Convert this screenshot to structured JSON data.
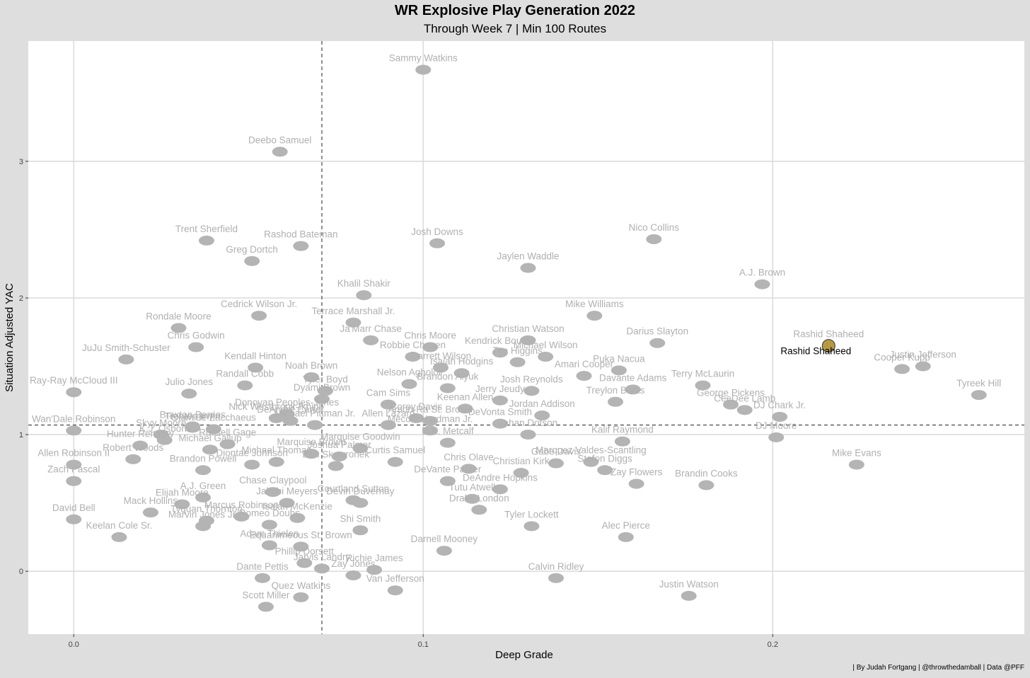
{
  "chart_data": {
    "type": "scatter",
    "title": "WR Explosive Play Generation 2022",
    "subtitle": "Through Week 7 | Min 100 Routes",
    "xlabel": "Deep Grade",
    "ylabel": "Situation Adjusted YAC",
    "caption": "| By Judah Fortgang | @throwthedamball | Data @PFF",
    "xlim": [
      -0.013,
      0.272
    ],
    "ylim": [
      -0.46,
      3.88
    ],
    "xticks": [
      0.0,
      0.1,
      0.2
    ],
    "xtick_labels": [
      "0.0",
      "0.1",
      "0.2"
    ],
    "yticks": [
      0,
      1,
      2,
      3
    ],
    "ytick_labels": [
      "0",
      "1",
      "2",
      "3"
    ],
    "grid": true,
    "vline_x": 0.071,
    "hline_y": 1.07,
    "highlight": "Rashid Shaheed",
    "colors": {
      "point": "#b4b4b4",
      "label": "#b0b0b0",
      "highlight_point": "#b59a45",
      "highlight_label": "#000000"
    },
    "points": [
      {
        "name": "Sammy Watkins",
        "x": 0.1,
        "y": 3.67
      },
      {
        "name": "Deebo Samuel",
        "x": 0.059,
        "y": 3.07
      },
      {
        "name": "Trent Sherfield",
        "x": 0.038,
        "y": 2.42
      },
      {
        "name": "Rashod Bateman",
        "x": 0.065,
        "y": 2.38
      },
      {
        "name": "Josh Downs",
        "x": 0.104,
        "y": 2.4
      },
      {
        "name": "Nico Collins",
        "x": 0.166,
        "y": 2.43
      },
      {
        "name": "Greg Dortch",
        "x": 0.051,
        "y": 2.27
      },
      {
        "name": "Jaylen Waddle",
        "x": 0.13,
        "y": 2.22
      },
      {
        "name": "A.J. Brown",
        "x": 0.197,
        "y": 2.1
      },
      {
        "name": "Khalil Shakir",
        "x": 0.083,
        "y": 2.02
      },
      {
        "name": "Cedrick Wilson Jr.",
        "x": 0.053,
        "y": 1.87
      },
      {
        "name": "Terrace Marshall Jr.",
        "x": 0.08,
        "y": 1.82
      },
      {
        "name": "Mike Williams",
        "x": 0.149,
        "y": 1.87
      },
      {
        "name": "Rondale Moore",
        "x": 0.03,
        "y": 1.78
      },
      {
        "name": "Ja'Marr Chase",
        "x": 0.085,
        "y": 1.69
      },
      {
        "name": "Chris Moore",
        "x": 0.102,
        "y": 1.64
      },
      {
        "name": "Christian Watson",
        "x": 0.13,
        "y": 1.69
      },
      {
        "name": "Darius Slayton",
        "x": 0.167,
        "y": 1.67
      },
      {
        "name": "Rashid Shaheed",
        "x": 0.216,
        "y": 1.65
      },
      {
        "name": "Chris Godwin",
        "x": 0.035,
        "y": 1.64
      },
      {
        "name": "Kendrick Bourne",
        "x": 0.122,
        "y": 1.6
      },
      {
        "name": "Michael Wilson",
        "x": 0.135,
        "y": 1.57
      },
      {
        "name": "Robbie Chosen",
        "x": 0.097,
        "y": 1.57
      },
      {
        "name": "JuJu Smith-Schuster",
        "x": 0.015,
        "y": 1.55
      },
      {
        "name": "Tee Higgins",
        "x": 0.127,
        "y": 1.53
      },
      {
        "name": "Justin Jefferson",
        "x": 0.243,
        "y": 1.5
      },
      {
        "name": "Kendall Hinton",
        "x": 0.052,
        "y": 1.49
      },
      {
        "name": "Garrett Wilson",
        "x": 0.105,
        "y": 1.49
      },
      {
        "name": "Noah Brown",
        "x": 0.068,
        "y": 1.42
      },
      {
        "name": "Amari Cooper",
        "x": 0.146,
        "y": 1.43
      },
      {
        "name": "Puka Nacua",
        "x": 0.156,
        "y": 1.47
      },
      {
        "name": "Isaiah Hodgins",
        "x": 0.111,
        "y": 1.45
      },
      {
        "name": "Cooper Kupp",
        "x": 0.237,
        "y": 1.48
      },
      {
        "name": "Randall Cobb",
        "x": 0.049,
        "y": 1.36
      },
      {
        "name": "Tyler Boyd",
        "x": 0.072,
        "y": 1.32
      },
      {
        "name": "Nelson Agholor",
        "x": 0.096,
        "y": 1.37
      },
      {
        "name": "Brandon Aiyuk",
        "x": 0.107,
        "y": 1.34
      },
      {
        "name": "Josh Reynolds",
        "x": 0.131,
        "y": 1.32
      },
      {
        "name": "Davante Adams",
        "x": 0.16,
        "y": 1.33
      },
      {
        "name": "Terry McLaurin",
        "x": 0.18,
        "y": 1.36
      },
      {
        "name": "Julio Jones",
        "x": 0.033,
        "y": 1.3
      },
      {
        "name": "Ray-Ray McCloud III",
        "x": 0.0,
        "y": 1.31
      },
      {
        "name": "Tyreek Hill",
        "x": 0.259,
        "y": 1.29
      },
      {
        "name": "Dyami Brown",
        "x": 0.071,
        "y": 1.26
      },
      {
        "name": "Jerry Jeudy",
        "x": 0.122,
        "y": 1.25
      },
      {
        "name": "Treylon Burks",
        "x": 0.155,
        "y": 1.24
      },
      {
        "name": "George Pickens",
        "x": 0.188,
        "y": 1.22
      },
      {
        "name": "Cam Sims",
        "x": 0.09,
        "y": 1.22
      },
      {
        "name": "Keenan Allen",
        "x": 0.112,
        "y": 1.19
      },
      {
        "name": "Donovan Peoples-Jones",
        "x": 0.061,
        "y": 1.15
      },
      {
        "name": "Braxton Berrios",
        "x": 0.034,
        "y": 1.06
      },
      {
        "name": "Corey Davis",
        "x": 0.098,
        "y": 1.12
      },
      {
        "name": "Amon-Ra St. Brown",
        "x": 0.102,
        "y": 1.1
      },
      {
        "name": "Jordan Addison",
        "x": 0.134,
        "y": 1.14
      },
      {
        "name": "CeeDee Lamb",
        "x": 0.192,
        "y": 1.18
      },
      {
        "name": "Olamide Zacchaeus",
        "x": 0.04,
        "y": 1.04
      },
      {
        "name": "Trenton Irwin",
        "x": 0.034,
        "y": 1.05
      },
      {
        "name": "DeAndre Carter",
        "x": 0.062,
        "y": 1.1
      },
      {
        "name": "Nick Westbrook-Ikhine",
        "x": 0.058,
        "y": 1.12
      },
      {
        "name": "DJ Chark Jr.",
        "x": 0.202,
        "y": 1.13
      },
      {
        "name": "Wan'Dale Robinson",
        "x": 0.0,
        "y": 1.03
      },
      {
        "name": "Allen Lazard",
        "x": 0.09,
        "y": 1.07
      },
      {
        "name": "Mecole Hardman Jr.",
        "x": 0.102,
        "y": 1.03
      },
      {
        "name": "DeVonta Smith",
        "x": 0.122,
        "y": 1.08
      },
      {
        "name": "Michael Pittman Jr.",
        "x": 0.069,
        "y": 1.07
      },
      {
        "name": "Skyy Moore",
        "x": 0.025,
        "y": 1.0
      },
      {
        "name": "Kalif Raymond",
        "x": 0.157,
        "y": 0.95
      },
      {
        "name": "Jahan Dotson",
        "x": 0.13,
        "y": 1.0
      },
      {
        "name": "DJ Moore",
        "x": 0.201,
        "y": 0.98
      },
      {
        "name": "K.J. Osborn",
        "x": 0.026,
        "y": 0.96
      },
      {
        "name": "D.K. Metcalf",
        "x": 0.107,
        "y": 0.94
      },
      {
        "name": "Hunter Renfrow",
        "x": 0.019,
        "y": 0.92
      },
      {
        "name": "Marquise Brown",
        "x": 0.068,
        "y": 0.86
      },
      {
        "name": "Marquise Goodwin",
        "x": 0.082,
        "y": 0.9
      },
      {
        "name": "Russell Gage",
        "x": 0.044,
        "y": 0.93
      },
      {
        "name": "Michael Gallup",
        "x": 0.039,
        "y": 0.89
      },
      {
        "name": "Joshua Palmer",
        "x": 0.076,
        "y": 0.84
      },
      {
        "name": "Gabe Davis",
        "x": 0.138,
        "y": 0.79
      },
      {
        "name": "Marquez Valdes-Scantling",
        "x": 0.148,
        "y": 0.8
      },
      {
        "name": "Chris Olave",
        "x": 0.113,
        "y": 0.75
      },
      {
        "name": "Curtis Samuel",
        "x": 0.092,
        "y": 0.8
      },
      {
        "name": "Diontae Johnson",
        "x": 0.051,
        "y": 0.78
      },
      {
        "name": "Michael Thomas",
        "x": 0.058,
        "y": 0.8
      },
      {
        "name": "Allen Robinson II",
        "x": 0.0,
        "y": 0.78
      },
      {
        "name": "Brandon Powell",
        "x": 0.037,
        "y": 0.74
      },
      {
        "name": "Ben Skowronek",
        "x": 0.075,
        "y": 0.77
      },
      {
        "name": "DeVante Parker",
        "x": 0.107,
        "y": 0.66
      },
      {
        "name": "Stefon Diggs",
        "x": 0.152,
        "y": 0.74
      },
      {
        "name": "Christian Kirk",
        "x": 0.128,
        "y": 0.72
      },
      {
        "name": "Brandin Cooks",
        "x": 0.181,
        "y": 0.63
      },
      {
        "name": "Mike Evans",
        "x": 0.224,
        "y": 0.78
      },
      {
        "name": "Zach Pascal",
        "x": 0.0,
        "y": 0.66
      },
      {
        "name": "Robert Woods",
        "x": 0.017,
        "y": 0.82
      },
      {
        "name": "Tutu Atwell",
        "x": 0.114,
        "y": 0.53
      },
      {
        "name": "Zay Flowers",
        "x": 0.161,
        "y": 0.64
      },
      {
        "name": "Chase Claypool",
        "x": 0.057,
        "y": 0.58
      },
      {
        "name": "Courtland Sutton",
        "x": 0.08,
        "y": 0.52
      },
      {
        "name": "A.J. Green",
        "x": 0.037,
        "y": 0.54
      },
      {
        "name": "DeAndre Hopkins",
        "x": 0.122,
        "y": 0.6
      },
      {
        "name": "Elijah Moore",
        "x": 0.031,
        "y": 0.49
      },
      {
        "name": "Jakobi Meyers",
        "x": 0.061,
        "y": 0.5
      },
      {
        "name": "Devin Duvernay",
        "x": 0.082,
        "y": 0.5
      },
      {
        "name": "Marcus Robinson",
        "x": 0.048,
        "y": 0.4
      },
      {
        "name": "Drake London",
        "x": 0.116,
        "y": 0.45
      },
      {
        "name": "Mack Hollins",
        "x": 0.022,
        "y": 0.43
      },
      {
        "name": "Tyquan Thornton",
        "x": 0.038,
        "y": 0.37
      },
      {
        "name": "Isaiah McKenzie",
        "x": 0.064,
        "y": 0.39
      },
      {
        "name": "David Bell",
        "x": 0.0,
        "y": 0.38
      },
      {
        "name": "Tyler Lockett",
        "x": 0.131,
        "y": 0.33
      },
      {
        "name": "Marvin Jones Jr.",
        "x": 0.037,
        "y": 0.33
      },
      {
        "name": "Shi Smith",
        "x": 0.082,
        "y": 0.3
      },
      {
        "name": "Romeo Doubs",
        "x": 0.056,
        "y": 0.34
      },
      {
        "name": "Alec Pierce",
        "x": 0.158,
        "y": 0.25
      },
      {
        "name": "Keelan Cole Sr.",
        "x": 0.013,
        "y": 0.25
      },
      {
        "name": "Equanimeous St. Brown",
        "x": 0.065,
        "y": 0.18
      },
      {
        "name": "Darnell Mooney",
        "x": 0.106,
        "y": 0.15
      },
      {
        "name": "Adam Thielen",
        "x": 0.056,
        "y": 0.19
      },
      {
        "name": "Phillip Dorsett",
        "x": 0.066,
        "y": 0.06
      },
      {
        "name": "Richie James",
        "x": 0.086,
        "y": 0.01
      },
      {
        "name": "Jarvis Landry",
        "x": 0.071,
        "y": 0.02
      },
      {
        "name": "Calvin Ridley",
        "x": 0.138,
        "y": -0.05
      },
      {
        "name": "Zay Jones",
        "x": 0.08,
        "y": -0.03
      },
      {
        "name": "Dante Pettis",
        "x": 0.054,
        "y": -0.05
      },
      {
        "name": "Justin Watson",
        "x": 0.176,
        "y": -0.18
      },
      {
        "name": "Quez Watkins",
        "x": 0.065,
        "y": -0.19
      },
      {
        "name": "Van Jefferson",
        "x": 0.092,
        "y": -0.14
      },
      {
        "name": "Scott Miller",
        "x": 0.055,
        "y": -0.26
      }
    ]
  }
}
